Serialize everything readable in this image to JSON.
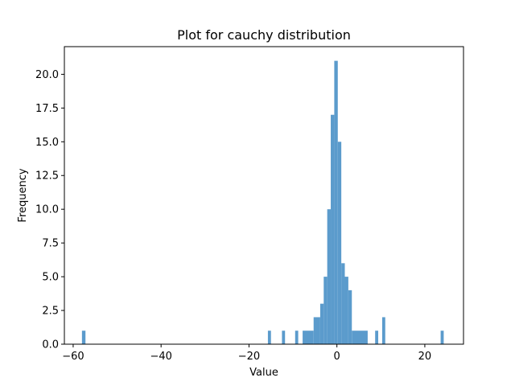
{
  "chart_data": {
    "type": "bar",
    "title": "Plot for cauchy distribution",
    "xlabel": "Value",
    "ylabel": "Frequency",
    "xlim": [
      -62.0,
      28.8
    ],
    "ylim": [
      0,
      22.05
    ],
    "xticks": [
      -60,
      -40,
      -20,
      0,
      20
    ],
    "xtick_labels": [
      "−60",
      "−40",
      "−20",
      "0",
      "20"
    ],
    "yticks": [
      0,
      2.5,
      5,
      7.5,
      10,
      12.5,
      15,
      17.5,
      20
    ],
    "ytick_labels": [
      "0.0",
      "2.5",
      "5.0",
      "7.5",
      "10.0",
      "12.5",
      "15.0",
      "17.5",
      "20.0"
    ],
    "bar_color": "#5b9bcc",
    "bins": [
      {
        "x0": -58.0,
        "x1": -57.2,
        "count": 1
      },
      {
        "x0": -15.7,
        "x1": -15.0,
        "count": 1
      },
      {
        "x0": -12.5,
        "x1": -11.8,
        "count": 1
      },
      {
        "x0": -9.5,
        "x1": -8.8,
        "count": 1
      },
      {
        "x0": -7.8,
        "x1": -5.3,
        "count": 1
      },
      {
        "x0": -5.3,
        "x1": -3.8,
        "count": 2
      },
      {
        "x0": -3.8,
        "x1": -3.0,
        "count": 3
      },
      {
        "x0": -3.0,
        "x1": -2.2,
        "count": 5
      },
      {
        "x0": -2.2,
        "x1": -1.4,
        "count": 10
      },
      {
        "x0": -1.4,
        "x1": -0.6,
        "count": 17
      },
      {
        "x0": -0.6,
        "x1": 0.2,
        "count": 21
      },
      {
        "x0": 0.2,
        "x1": 1.0,
        "count": 15
      },
      {
        "x0": 1.0,
        "x1": 1.8,
        "count": 6
      },
      {
        "x0": 1.8,
        "x1": 2.6,
        "count": 5
      },
      {
        "x0": 2.6,
        "x1": 3.4,
        "count": 4
      },
      {
        "x0": 3.4,
        "x1": 7.0,
        "count": 1
      },
      {
        "x0": 8.7,
        "x1": 9.4,
        "count": 1
      },
      {
        "x0": 10.3,
        "x1": 11.0,
        "count": 2
      },
      {
        "x0": 23.6,
        "x1": 24.3,
        "count": 1
      }
    ]
  }
}
